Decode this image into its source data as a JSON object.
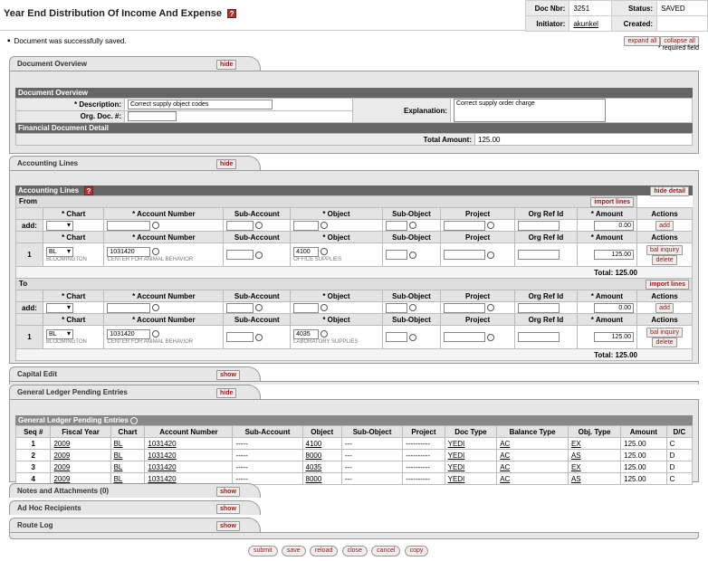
{
  "header": {
    "title": "Year End Distribution Of Income And Expense",
    "help_icon": "?",
    "doc_nbr_label": "Doc Nbr:",
    "doc_nbr": "3251",
    "status_label": "Status:",
    "status": "SAVED",
    "initiator_label": "Initiator:",
    "initiator": "akunkel",
    "created_label": "Created:",
    "created": ""
  },
  "message": "Document was successfully saved.",
  "expand_all": "expand all",
  "collapse_all": "collapse all",
  "required_field": "* required field",
  "doc_overview": {
    "tab": "Document Overview",
    "hide": "hide",
    "section": "Document Overview",
    "desc_label": "* Description:",
    "desc_value": "Correct supply object codes",
    "org_label": "Org. Doc. #:",
    "org_value": "",
    "expl_label": "Explanation:",
    "expl_value": "Correct supply order charge",
    "fin_detail": "Financial Document Detail",
    "total_label": "Total Amount:",
    "total_value": "125.00"
  },
  "accounting": {
    "tab": "Accounting Lines",
    "hide": "hide",
    "section": "Accounting Lines",
    "hide_detail": "hide detail",
    "import_lines": "import lines",
    "cols": [
      "* Chart",
      "* Account Number",
      "Sub-Account",
      "* Object",
      "Sub-Object",
      "Project",
      "Org Ref Id",
      "* Amount",
      "Actions"
    ],
    "add_label": "add:",
    "add_btn": "add",
    "bal_inquiry": "bal inquiry",
    "delete": "delete",
    "from": {
      "label": "From",
      "add_amount": "0.00",
      "line": {
        "seq": "1",
        "chart": "BL",
        "chart_name": "BLOOMINGTON",
        "account": "1031420",
        "account_name": "CENTER FOR ANIMAL BEHAVIOR",
        "object": "4100",
        "object_name": "OFFICE SUPPLIES",
        "amount": "125.00"
      },
      "total": "Total: 125.00"
    },
    "to": {
      "label": "To",
      "add_amount": "0.00",
      "line": {
        "seq": "1",
        "chart": "BL",
        "chart_name": "BLOOMINGTON",
        "account": "1031420",
        "account_name": "CENTER FOR ANIMAL BEHAVIOR",
        "object": "4035",
        "object_name": "LABORATORY SUPPLIES",
        "amount": "125.00"
      },
      "total": "Total: 125.00"
    }
  },
  "capital_edit": {
    "tab": "Capital Edit",
    "show": "show"
  },
  "glpe": {
    "tab": "General Ledger Pending Entries",
    "hide": "hide",
    "section": "General Ledger Pending Entries",
    "cols": [
      "Seq #",
      "Fiscal Year",
      "Chart",
      "Account Number",
      "Sub-Account",
      "Object",
      "Sub-Object",
      "Project",
      "Doc Type",
      "Balance Type",
      "Obj. Type",
      "Amount",
      "D/C"
    ],
    "rows": [
      [
        "1",
        "2009",
        "BL",
        "1031420",
        "-----",
        "4100",
        "---",
        "----------",
        "YEDI",
        "AC",
        "EX",
        "125.00",
        "C"
      ],
      [
        "2",
        "2009",
        "BL",
        "1031420",
        "-----",
        "8000",
        "---",
        "----------",
        "YEDI",
        "AC",
        "AS",
        "125.00",
        "D"
      ],
      [
        "3",
        "2009",
        "BL",
        "1031420",
        "-----",
        "4035",
        "---",
        "----------",
        "YEDI",
        "AC",
        "EX",
        "125.00",
        "D"
      ],
      [
        "4",
        "2009",
        "BL",
        "1031420",
        "-----",
        "8000",
        "---",
        "----------",
        "YEDI",
        "AC",
        "AS",
        "125.00",
        "C"
      ]
    ]
  },
  "notes": {
    "tab": "Notes and Attachments (0)",
    "show": "show"
  },
  "adhoc": {
    "tab": "Ad Hoc Recipients",
    "show": "show"
  },
  "route": {
    "tab": "Route Log",
    "show": "show"
  },
  "buttons": [
    "submit",
    "save",
    "reload",
    "close",
    "cancel",
    "copy"
  ]
}
